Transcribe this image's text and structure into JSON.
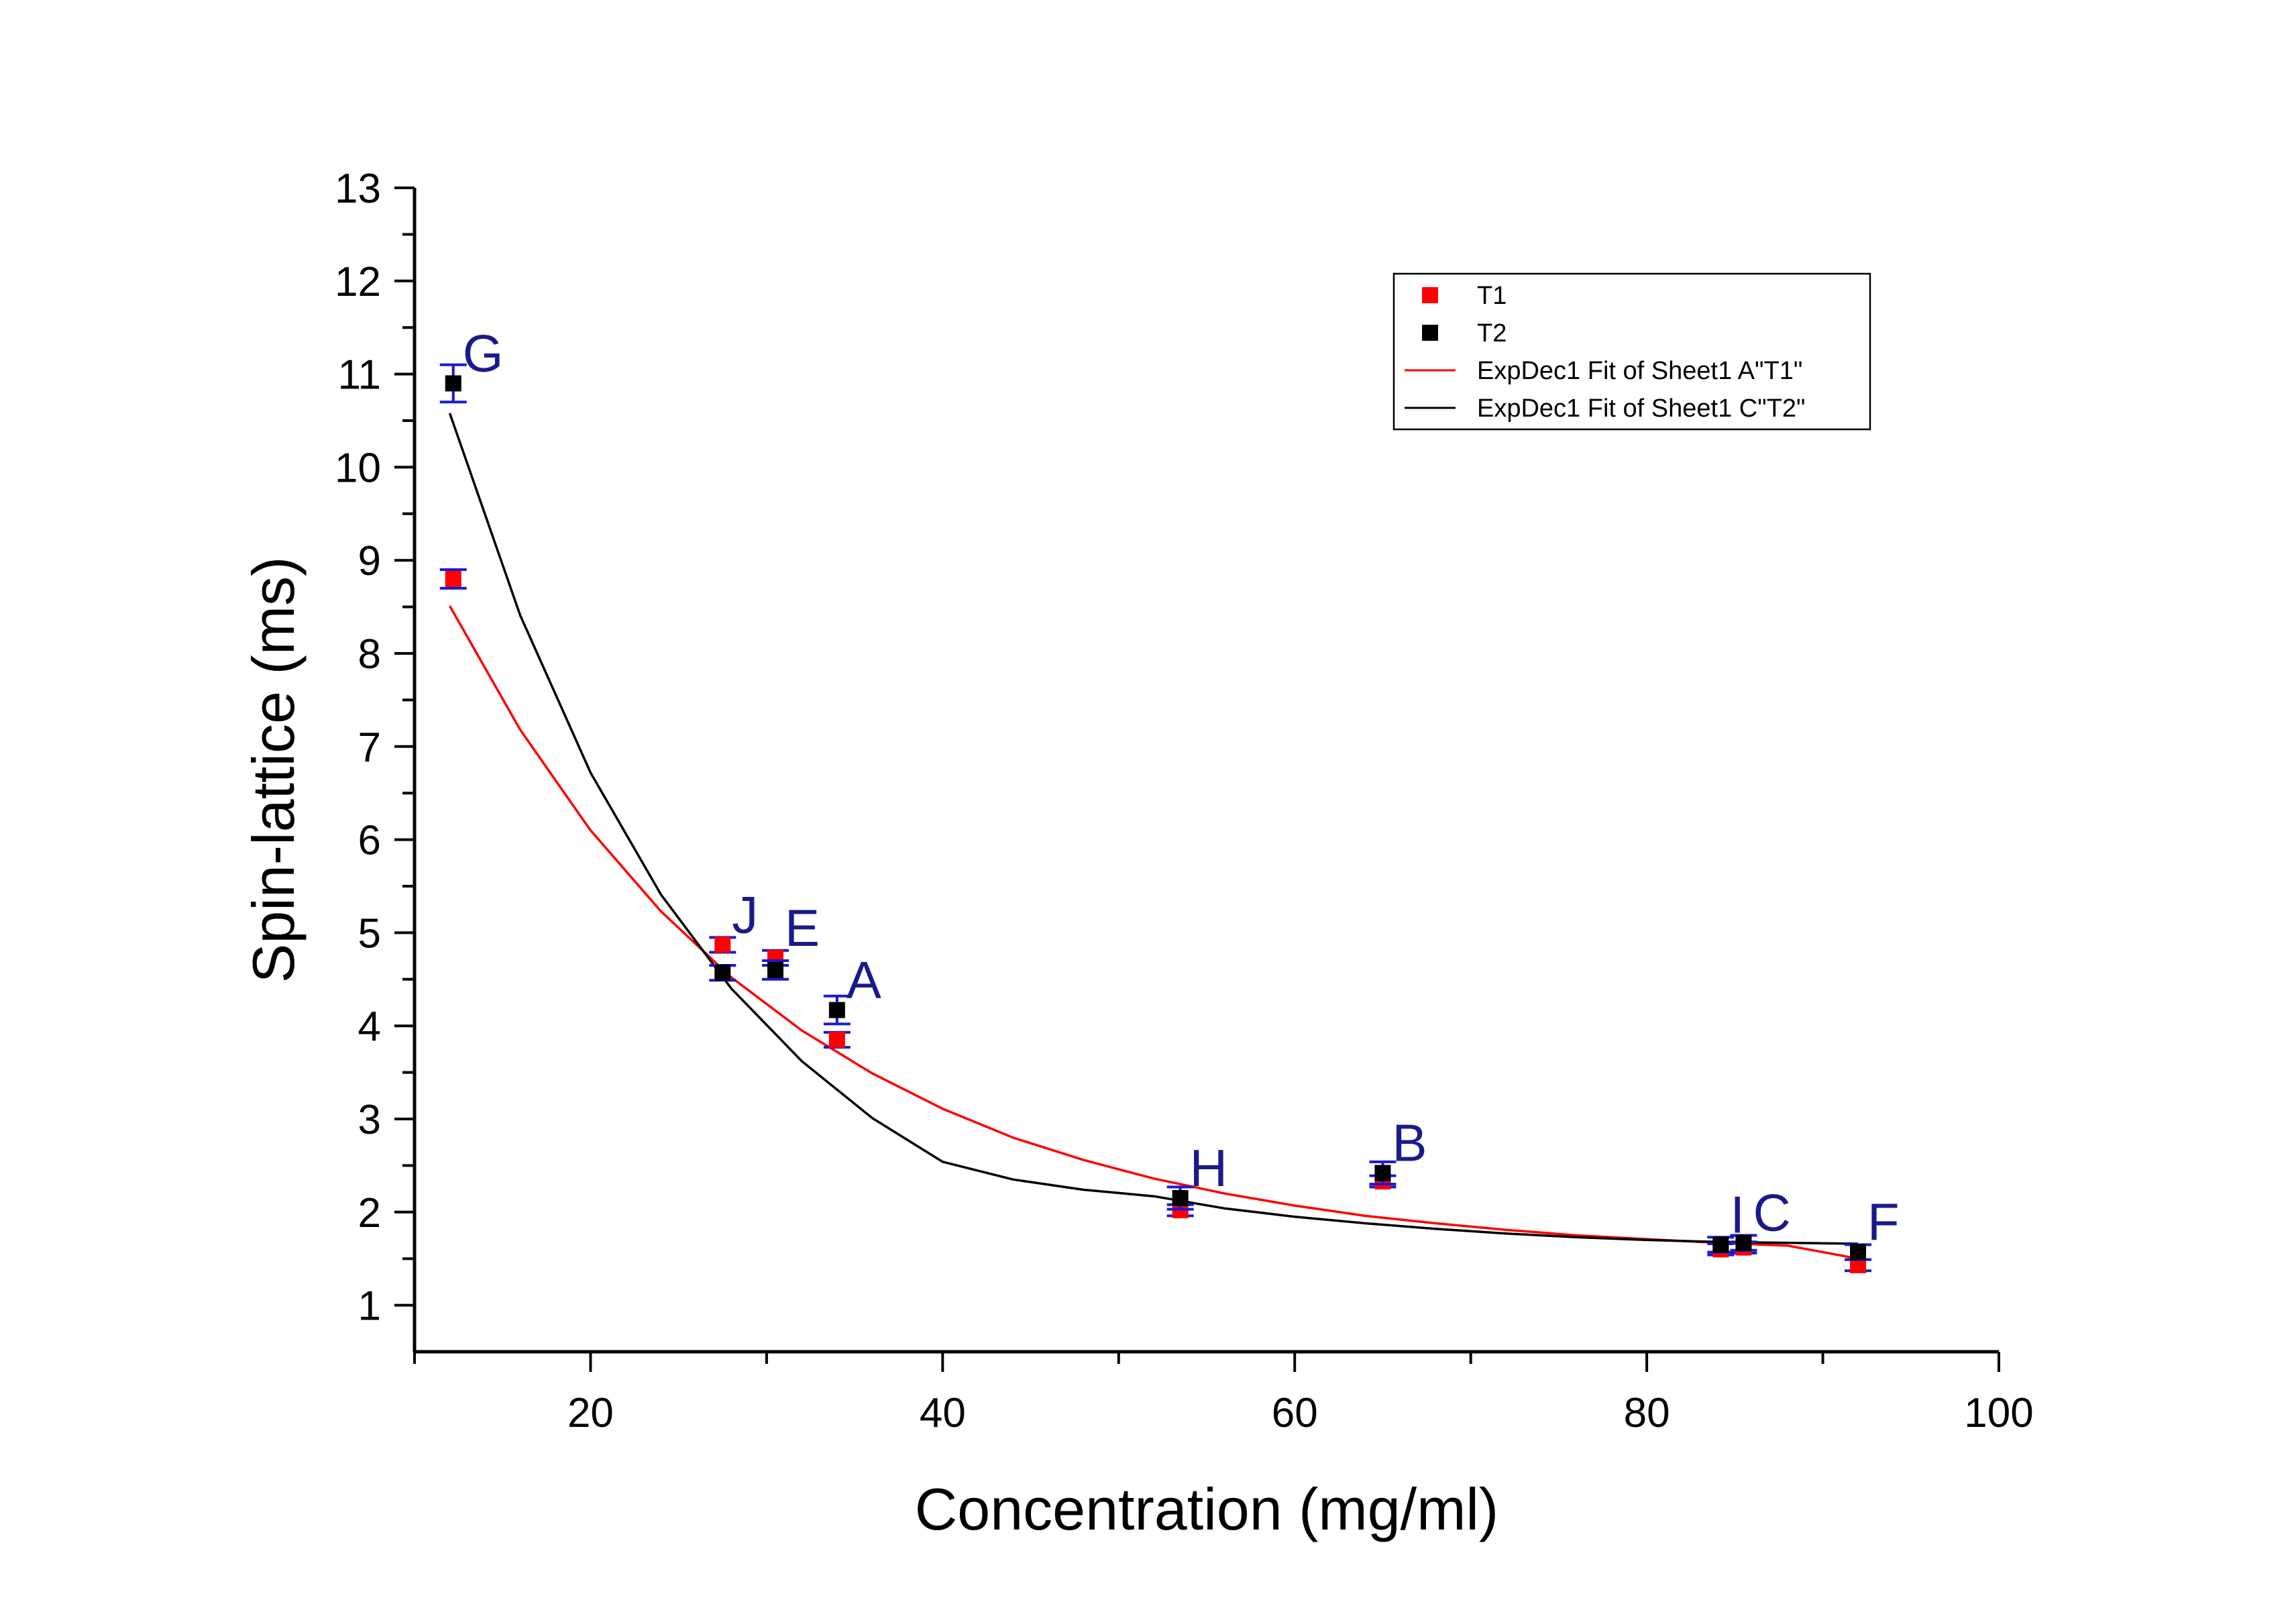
{
  "chart_data": {
    "type": "scatter",
    "title": "",
    "xlabel": "Concentration (mg/ml)",
    "ylabel": "Spin-lattice (ms)",
    "xlim": [
      10,
      100
    ],
    "ylim": [
      0.5,
      13
    ],
    "x_ticks": [
      20,
      40,
      60,
      80,
      100
    ],
    "y_ticks": [
      1,
      2,
      3,
      4,
      5,
      6,
      7,
      8,
      9,
      10,
      11,
      12,
      13
    ],
    "grid": false,
    "legend_position": "top-right",
    "series": [
      {
        "name": "T1",
        "color": "#ff0000",
        "marker": "square",
        "points": [
          {
            "x": 12.2,
            "y": 8.8,
            "err": 0.1
          },
          {
            "x": 27.5,
            "y": 4.87,
            "err": 0.08
          },
          {
            "x": 30.5,
            "y": 4.73,
            "err": 0.08
          },
          {
            "x": 34.0,
            "y": 3.85,
            "err": 0.08
          },
          {
            "x": 53.5,
            "y": 2.02,
            "err": 0.06
          },
          {
            "x": 65.0,
            "y": 2.33,
            "err": 0.06
          },
          {
            "x": 84.2,
            "y": 1.6,
            "err": 0.06
          },
          {
            "x": 85.5,
            "y": 1.62,
            "err": 0.06
          },
          {
            "x": 92.0,
            "y": 1.43,
            "err": 0.06
          }
        ]
      },
      {
        "name": "T2",
        "color": "#000000",
        "marker": "square",
        "points": [
          {
            "x": 12.2,
            "y": 10.9,
            "err": 0.2
          },
          {
            "x": 27.5,
            "y": 4.57,
            "err": 0.08
          },
          {
            "x": 30.5,
            "y": 4.6,
            "err": 0.1
          },
          {
            "x": 34.0,
            "y": 4.17,
            "err": 0.15
          },
          {
            "x": 53.5,
            "y": 2.15,
            "err": 0.12
          },
          {
            "x": 65.0,
            "y": 2.42,
            "err": 0.12
          },
          {
            "x": 84.2,
            "y": 1.65,
            "err": 0.08
          },
          {
            "x": 85.5,
            "y": 1.67,
            "err": 0.08
          },
          {
            "x": 92.0,
            "y": 1.57,
            "err": 0.08
          }
        ]
      },
      {
        "name": "ExpDec1 Fit of Sheet1 A\"T1\"",
        "color": "#ff0000",
        "type": "line",
        "x": [
          12,
          16,
          20,
          24,
          28,
          32,
          36,
          40,
          44,
          48,
          52,
          56,
          60,
          64,
          68,
          72,
          76,
          80,
          84,
          88,
          92
        ],
        "y": [
          8.51,
          7.18,
          6.1,
          5.23,
          4.52,
          3.95,
          3.49,
          3.11,
          2.8,
          2.56,
          2.36,
          2.2,
          2.07,
          1.96,
          1.88,
          1.81,
          1.75,
          1.71,
          1.67,
          1.64,
          1.5
        ]
      },
      {
        "name": "ExpDec1 Fit of Sheet1 C\"T2\"",
        "color": "#000000",
        "type": "line",
        "x": [
          12,
          16,
          20,
          24,
          28,
          32,
          36,
          40,
          44,
          48,
          52,
          56,
          60,
          64,
          68,
          72,
          76,
          80,
          84,
          88,
          92
        ],
        "y": [
          10.58,
          8.41,
          6.72,
          5.41,
          4.4,
          3.62,
          3.01,
          2.54,
          2.35,
          2.24,
          2.17,
          2.04,
          1.95,
          1.88,
          1.82,
          1.77,
          1.73,
          1.7,
          1.68,
          1.67,
          1.66
        ]
      }
    ],
    "annotations": [
      {
        "text": "G",
        "x": 12.2,
        "y": 10.9
      },
      {
        "text": "J",
        "x": 27.5,
        "y": 4.87
      },
      {
        "text": "E",
        "x": 30.5,
        "y": 4.73
      },
      {
        "text": "A",
        "x": 34.0,
        "y": 4.17
      },
      {
        "text": "H",
        "x": 53.5,
        "y": 2.15
      },
      {
        "text": "B",
        "x": 65.0,
        "y": 2.42
      },
      {
        "text": "I",
        "x": 84.2,
        "y": 1.65
      },
      {
        "text": "C",
        "x": 85.5,
        "y": 1.67
      },
      {
        "text": "F",
        "x": 92.0,
        "y": 1.57
      }
    ]
  }
}
